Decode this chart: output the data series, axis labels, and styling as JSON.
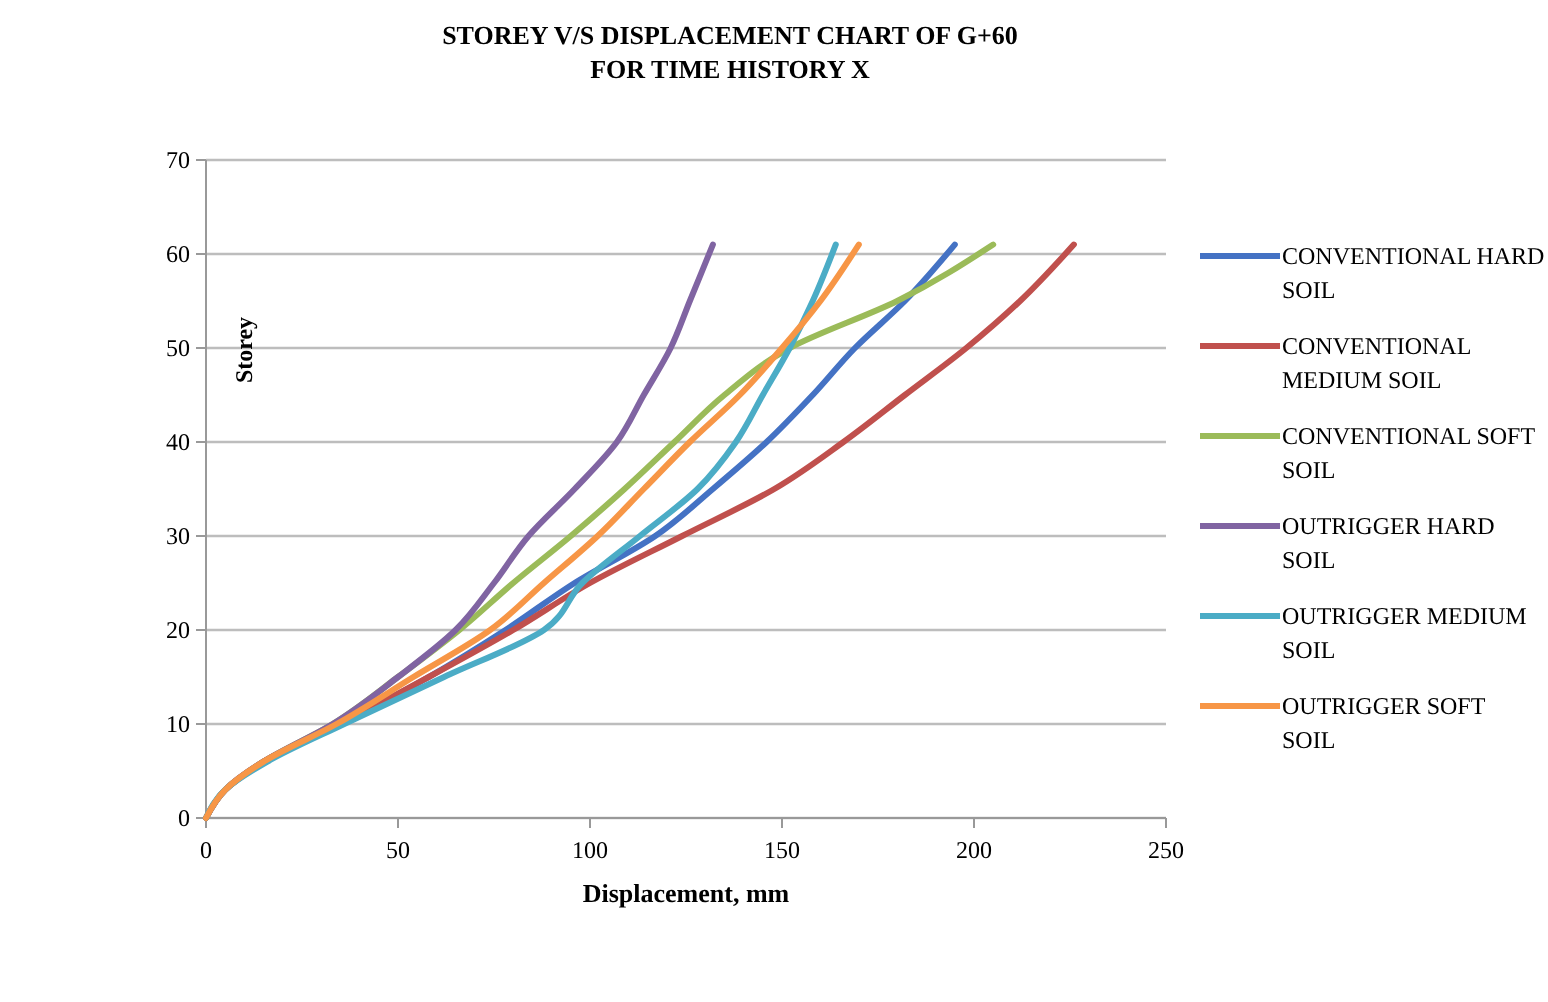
{
  "chart_data": {
    "type": "line",
    "title": "STOREY V/S DISPLACEMENT CHART OF G+60 FOR TIME HISTORY X",
    "xlabel": "Displacement, mm",
    "ylabel": "Storey",
    "xlim": [
      0,
      250
    ],
    "xticks": [
      0,
      50,
      100,
      150,
      200,
      250
    ],
    "ylim": [
      0,
      70
    ],
    "yticks": [
      0,
      10,
      20,
      30,
      40,
      50,
      60,
      70
    ],
    "grid": "y",
    "legend": "right",
    "marker": "none",
    "line_style": "solid",
    "series": [
      {
        "name": "CONVENTIONAL HARD SOIL",
        "color": "#4472c4",
        "x": [
          0,
          5,
          15,
          35,
          58,
          78,
          96,
          117,
          132,
          146,
          158,
          169,
          182,
          195
        ],
        "values": [
          0,
          3,
          6,
          10,
          15,
          20,
          25,
          30,
          35,
          40,
          45,
          50,
          55,
          61
        ]
      },
      {
        "name": "CONVENTIONAL MEDIUM SOIL",
        "color": "#c0504d",
        "x": [
          0,
          5,
          15,
          35,
          58,
          80,
          100,
          124,
          148,
          166,
          182,
          198,
          212,
          226
        ],
        "values": [
          0,
          3,
          6,
          10,
          15,
          20,
          25,
          30,
          35,
          40,
          45,
          50,
          55,
          61
        ]
      },
      {
        "name": "CONVENTIONAL SOFT SOIL",
        "color": "#9bbb59",
        "x": [
          0,
          5,
          15,
          33,
          50,
          66,
          80,
          95,
          109,
          122,
          135,
          152,
          180,
          205
        ],
        "values": [
          0,
          3,
          6,
          10,
          15,
          20,
          25,
          30,
          35,
          40,
          45,
          50,
          55,
          61
        ]
      },
      {
        "name": "OUTRIGGER HARD SOIL",
        "color": "#8064a2",
        "x": [
          0,
          5,
          15,
          33,
          50,
          65,
          75,
          84,
          96,
          107,
          114,
          121,
          126,
          132
        ],
        "values": [
          0,
          3,
          6,
          10,
          15,
          20,
          25,
          30,
          35,
          40,
          45,
          50,
          55,
          61
        ]
      },
      {
        "name": "OUTRIGGER MEDIUM SOIL",
        "color": "#4bacc6",
        "x": [
          0,
          5,
          16,
          36,
          62,
          88,
          98,
          113,
          128,
          138,
          145,
          152,
          158,
          164
        ],
        "values": [
          0,
          3,
          6,
          10,
          15,
          20,
          25,
          30,
          35,
          40,
          45,
          50,
          55,
          61
        ]
      },
      {
        "name": "OUTRIGGER SOFT SOIL",
        "color": "#f79646",
        "x": [
          0,
          5,
          15,
          34,
          54,
          74,
          88,
          102,
          114,
          126,
          139,
          150,
          160,
          170
        ],
        "values": [
          0,
          3,
          6,
          10,
          15,
          20,
          25,
          30,
          35,
          40,
          45,
          50,
          55,
          61
        ]
      }
    ]
  }
}
